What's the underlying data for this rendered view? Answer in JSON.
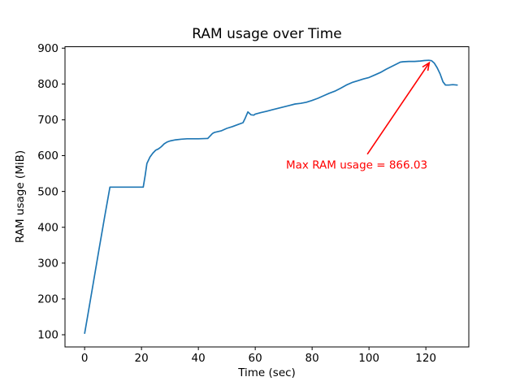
{
  "chart_data": {
    "type": "line",
    "title": "RAM usage over Time",
    "xlabel": "Time (sec)",
    "ylabel": "RAM usage (MiB)",
    "xlim": [
      -6.9,
      135.1
    ],
    "ylim": [
      66,
      904
    ],
    "x_ticks": [
      0,
      20,
      40,
      60,
      80,
      100,
      120
    ],
    "y_ticks": [
      100,
      200,
      300,
      400,
      500,
      600,
      700,
      800,
      900
    ],
    "grid": false,
    "legend": null,
    "line_color": "#1f77b4",
    "background_color": "#ffffff",
    "max_value": 866.03,
    "series": [
      {
        "name": "RAM usage",
        "points": [
          [
            0,
            104
          ],
          [
            1,
            150
          ],
          [
            3,
            243
          ],
          [
            5,
            336
          ],
          [
            7,
            428
          ],
          [
            8.9,
            512
          ],
          [
            20.6,
            512
          ],
          [
            21.3,
            545
          ],
          [
            21.9,
            578
          ],
          [
            23,
            596
          ],
          [
            24,
            607
          ],
          [
            25,
            615
          ],
          [
            26,
            619
          ],
          [
            27,
            625
          ],
          [
            28,
            633
          ],
          [
            29,
            638
          ],
          [
            30,
            641
          ],
          [
            32,
            644
          ],
          [
            34,
            646
          ],
          [
            36,
            647
          ],
          [
            38,
            647
          ],
          [
            40,
            647
          ],
          [
            43.3,
            648
          ],
          [
            45,
            662
          ],
          [
            45.7,
            665
          ],
          [
            48,
            669
          ],
          [
            50,
            676
          ],
          [
            52,
            681
          ],
          [
            54,
            687
          ],
          [
            55.7,
            692
          ],
          [
            56.5,
            705
          ],
          [
            57.4,
            722
          ],
          [
            58.5,
            714
          ],
          [
            59.5,
            713
          ],
          [
            60,
            716
          ],
          [
            62,
            720
          ],
          [
            64,
            724
          ],
          [
            66,
            728
          ],
          [
            68,
            732
          ],
          [
            70,
            736
          ],
          [
            72,
            740
          ],
          [
            74,
            744
          ],
          [
            76,
            746
          ],
          [
            78,
            749
          ],
          [
            80,
            754
          ],
          [
            82,
            760
          ],
          [
            84,
            767
          ],
          [
            86,
            774
          ],
          [
            88,
            780
          ],
          [
            90,
            788
          ],
          [
            92,
            797
          ],
          [
            94,
            804
          ],
          [
            96,
            809
          ],
          [
            98,
            814
          ],
          [
            100,
            818
          ],
          [
            102,
            825
          ],
          [
            104,
            832
          ],
          [
            106,
            841
          ],
          [
            108,
            849
          ],
          [
            110,
            857
          ],
          [
            111,
            861
          ],
          [
            112,
            862
          ],
          [
            114,
            863
          ],
          [
            116,
            863
          ],
          [
            118,
            864
          ],
          [
            119.5,
            865.5
          ],
          [
            121,
            866.03
          ],
          [
            122,
            865
          ],
          [
            123,
            858
          ],
          [
            124,
            845
          ],
          [
            125,
            828
          ],
          [
            126,
            806
          ],
          [
            126.9,
            797
          ],
          [
            128,
            797
          ],
          [
            129.5,
            798
          ],
          [
            131,
            797
          ]
        ]
      }
    ],
    "annotation": {
      "text": "Max RAM usage = 866.03",
      "color": "#ff0000",
      "point": [
        121,
        866.03
      ],
      "text_pos": [
        70.8,
        564
      ],
      "arrow_tail": [
        99.4,
        604
      ],
      "arrow_head": [
        121.2,
        859
      ]
    }
  }
}
